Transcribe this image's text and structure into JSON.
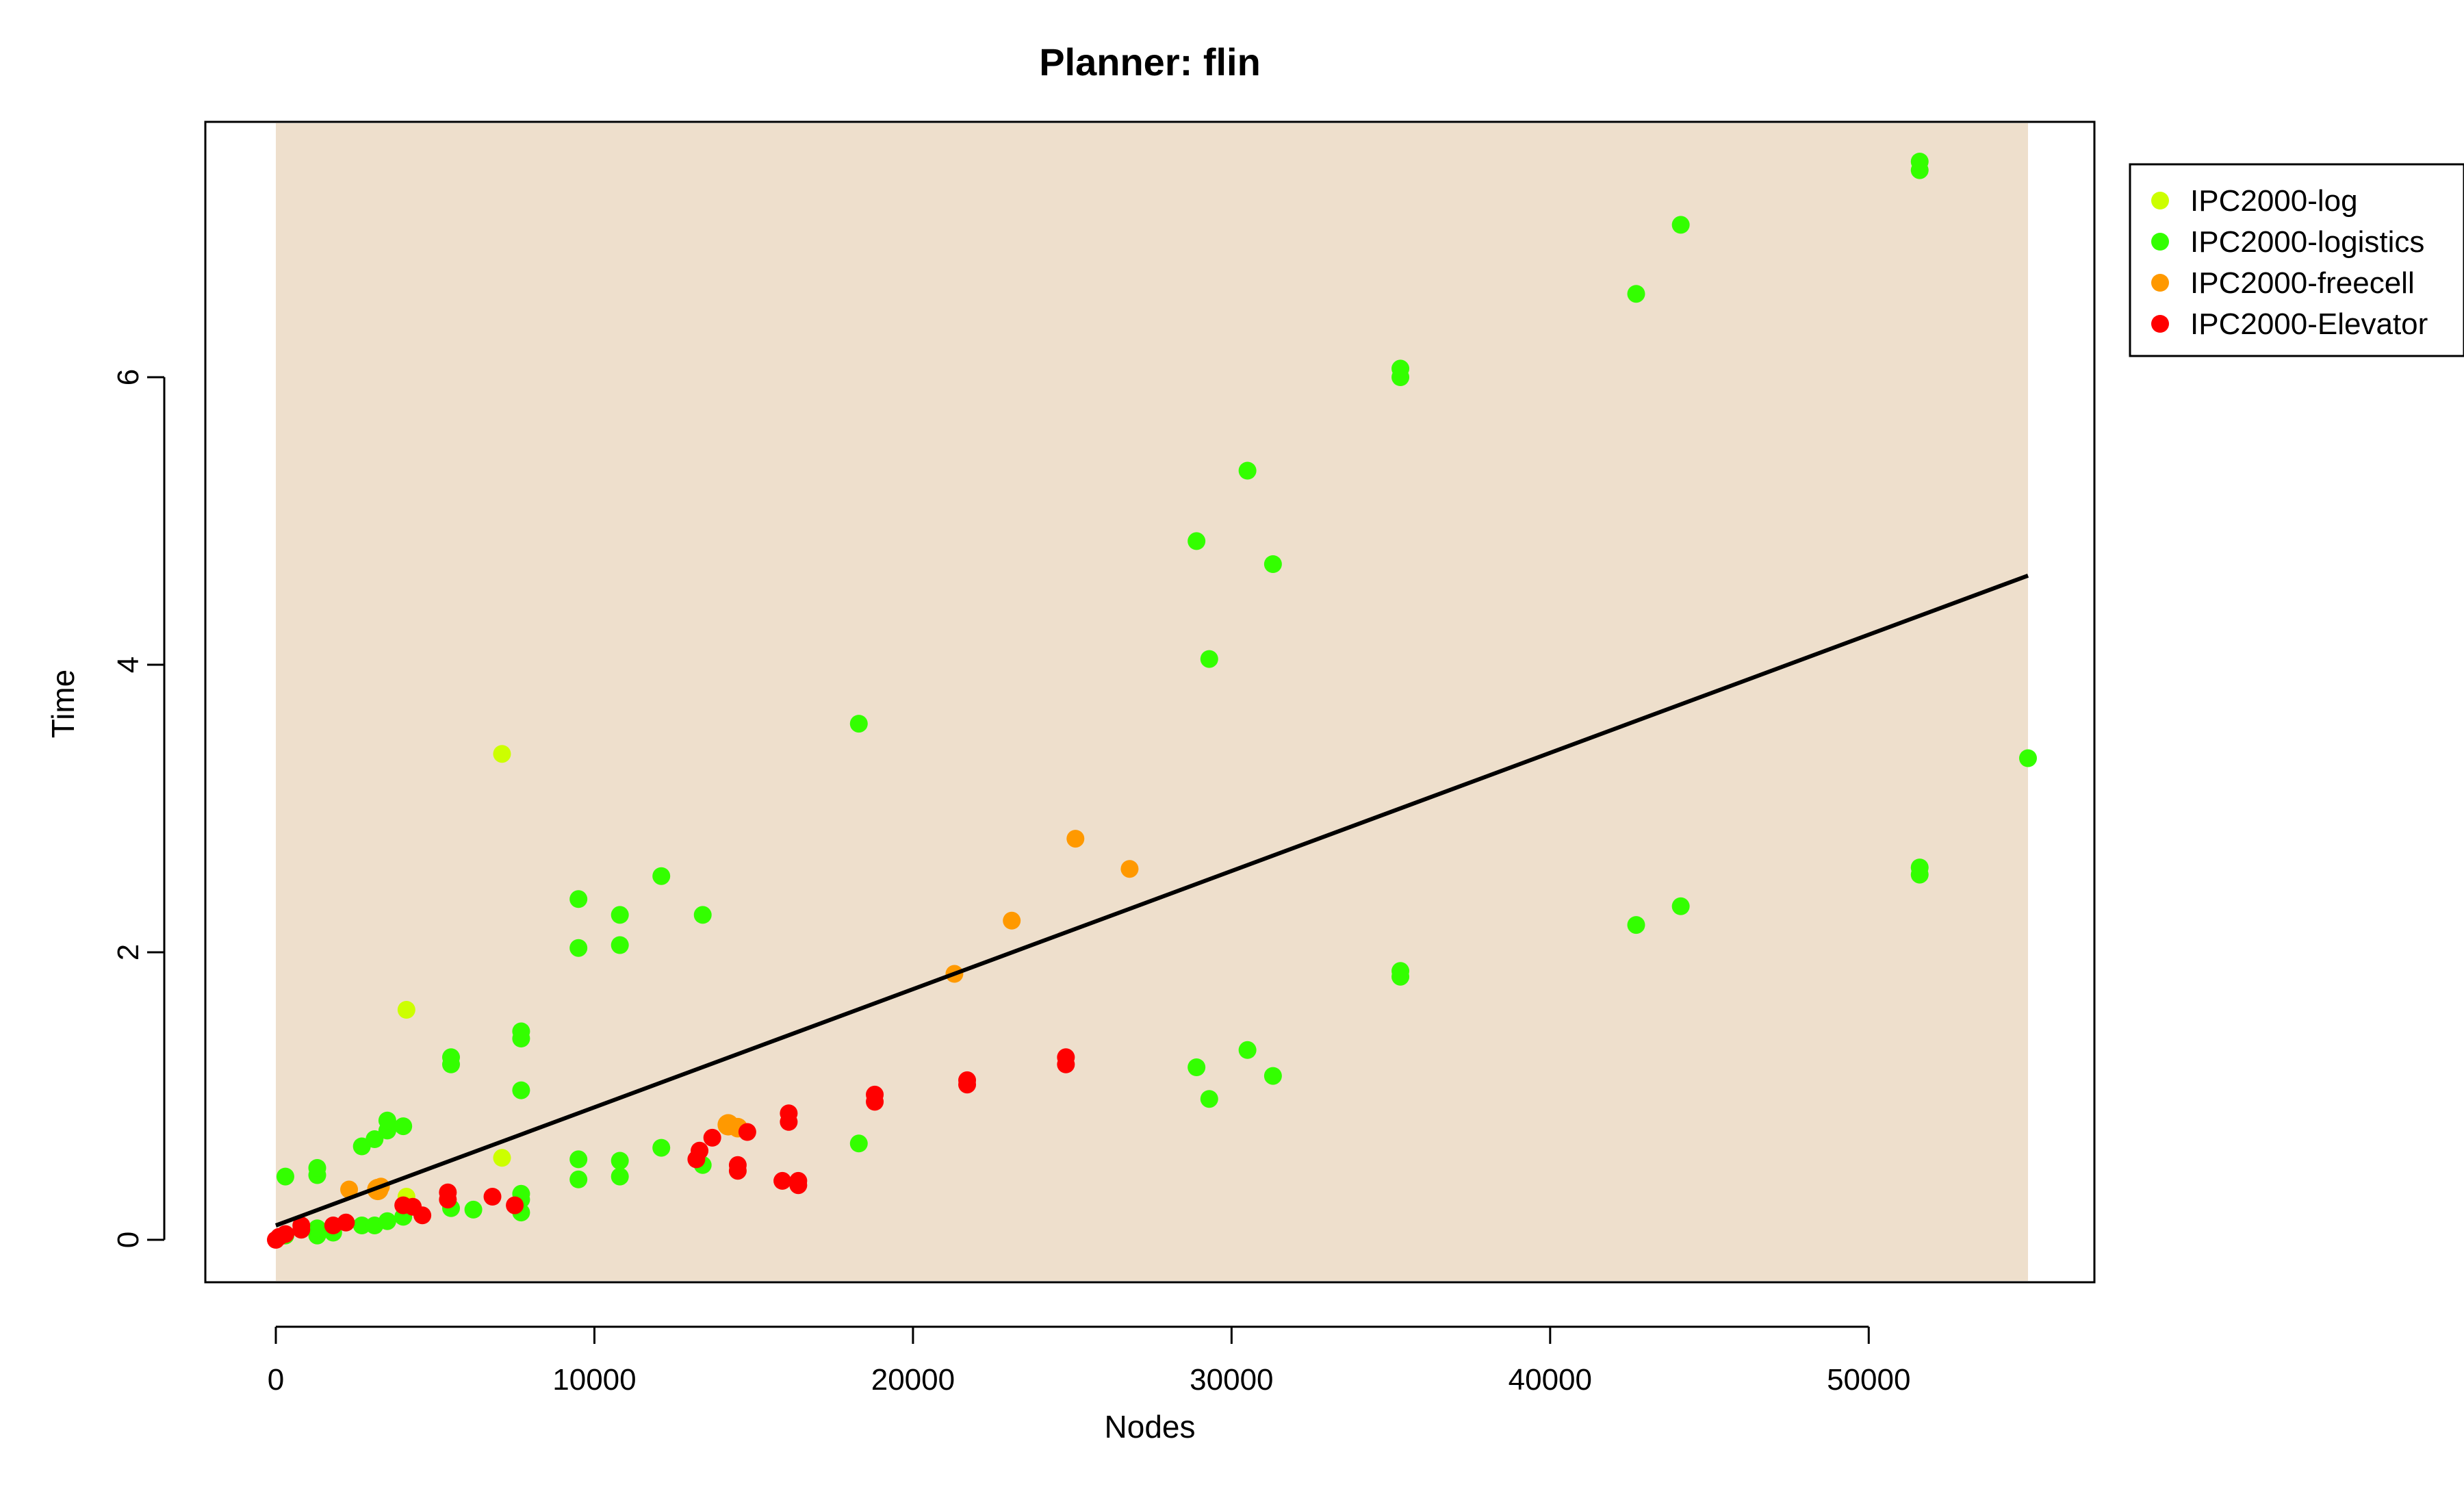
{
  "chart_data": {
    "type": "scatter",
    "title": "Planner: flin",
    "xlabel": "Nodes",
    "ylabel": "Time",
    "xlim": [
      0,
      55000
    ],
    "ylim": [
      0,
      7.5
    ],
    "xticks": [
      0,
      10000,
      20000,
      30000,
      40000,
      50000
    ],
    "xtick_labels": [
      "0",
      "10000",
      "20000",
      "30000",
      "40000",
      "50000"
    ],
    "yticks": [
      0,
      2,
      4,
      6
    ],
    "ytick_labels": [
      "0",
      "2",
      "4",
      "6"
    ],
    "background_color": "#EEDFCC",
    "grid": false,
    "legend_position": "top-right outside",
    "series": [
      {
        "name": "IPC2000-log",
        "color": "#CCFF00",
        "x": [
          4100,
          7100,
          4100,
          7100
        ],
        "y": [
          0.3,
          0.57,
          1.6,
          3.38
        ]
      },
      {
        "name": "IPC2000-logistics",
        "color": "#33FF00",
        "x": [
          300,
          300,
          1300,
          1300,
          1300,
          1300,
          1800,
          2700,
          2700,
          3100,
          3100,
          3500,
          3500,
          3500,
          4000,
          4000,
          5500,
          5500,
          5500,
          6200,
          7700,
          7700,
          7700,
          7700,
          7700,
          7700,
          9500,
          9500,
          9500,
          9500,
          10800,
          10800,
          10800,
          10800,
          12100,
          12100,
          13400,
          13400,
          18300,
          18300,
          28900,
          28900,
          29300,
          29300,
          30500,
          30500,
          31300,
          31300,
          35300,
          35300,
          35300,
          35300,
          42700,
          42700,
          44100,
          44100,
          51600,
          51600,
          51600,
          51600,
          55000
        ],
        "y": [
          0.03,
          0.44,
          0.03,
          0.08,
          0.45,
          0.5,
          0.05,
          0.1,
          0.65,
          0.1,
          0.7,
          0.13,
          0.76,
          0.83,
          0.16,
          0.79,
          0.22,
          1.22,
          1.27,
          0.21,
          0.19,
          0.28,
          0.32,
          1.04,
          1.4,
          1.45,
          0.42,
          0.56,
          2.03,
          2.37,
          0.44,
          0.55,
          2.05,
          2.26,
          0.64,
          2.53,
          0.52,
          2.26,
          0.67,
          3.59,
          1.2,
          4.86,
          0.98,
          4.04,
          1.32,
          5.35,
          1.14,
          4.7,
          1.83,
          1.87,
          6.0,
          6.06,
          2.19,
          6.58,
          2.32,
          7.06,
          2.54,
          2.59,
          7.44,
          7.5,
          3.35
        ]
      },
      {
        "name": "IPC2000-freecell",
        "color": "#FF9900",
        "x": [
          2300,
          3200,
          3300,
          14200,
          14500,
          21300,
          23100,
          25100,
          26800
        ],
        "y": [
          0.35,
          0.35,
          0.37,
          0.8,
          0.78,
          1.85,
          2.22,
          2.79,
          2.58
        ],
        "marker_size": [
          1,
          1.2,
          1,
          1.2,
          1.1,
          1,
          1,
          1,
          1
        ]
      },
      {
        "name": "IPC2000-Elevator",
        "color": "#FF0000",
        "x": [
          0,
          100,
          300,
          800,
          800,
          1800,
          2200,
          4000,
          4300,
          4600,
          5400,
          5400,
          6800,
          7500,
          13200,
          13300,
          13700,
          14500,
          14500,
          14800,
          15900,
          16100,
          16100,
          16400,
          16400,
          18800,
          18800,
          21700,
          21700,
          24800,
          24800
        ],
        "y": [
          0.0,
          0.02,
          0.04,
          0.07,
          0.1,
          0.1,
          0.12,
          0.24,
          0.23,
          0.17,
          0.28,
          0.33,
          0.3,
          0.24,
          0.56,
          0.62,
          0.71,
          0.48,
          0.52,
          0.75,
          0.41,
          0.82,
          0.88,
          0.38,
          0.41,
          0.96,
          1.01,
          1.08,
          1.11,
          1.22,
          1.27
        ]
      }
    ],
    "fit_line": {
      "color": "#000000",
      "x": [
        0,
        55000
      ],
      "y": [
        0.1,
        4.62
      ]
    }
  }
}
